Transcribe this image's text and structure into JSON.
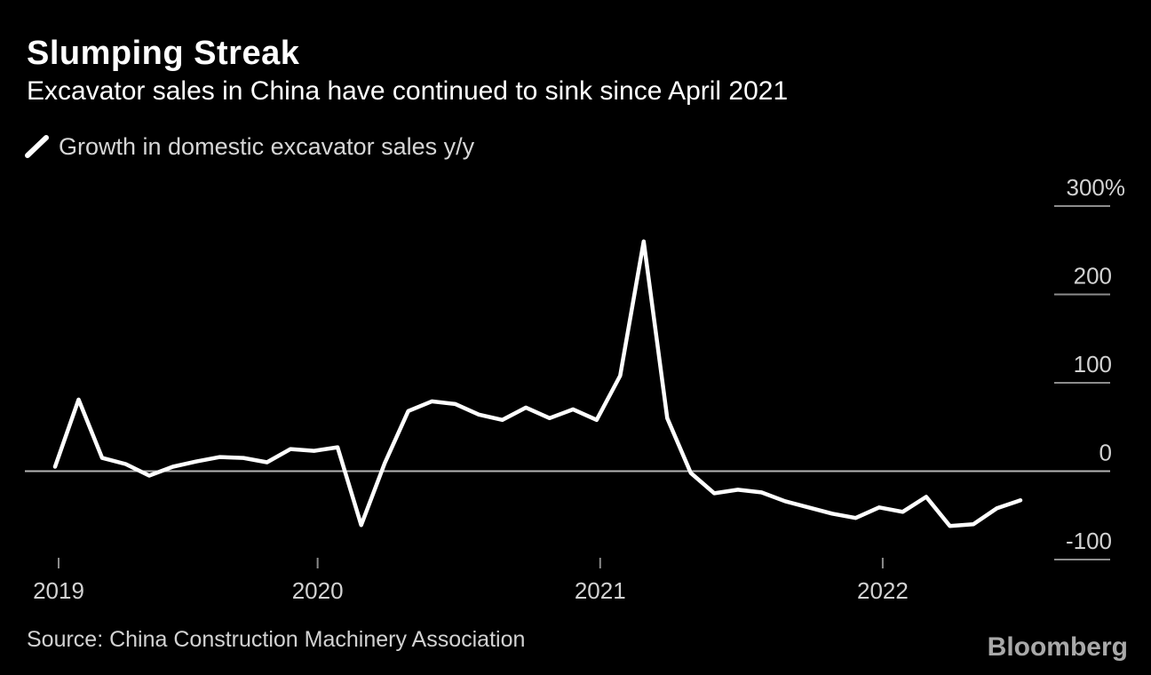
{
  "header": {
    "title": "Slumping Streak",
    "subtitle": "Excavator sales in China have continued to sink since April 2021"
  },
  "legend": {
    "label": "Growth in domestic excavator sales y/y"
  },
  "footer": {
    "source": "Source: China Construction Machinery Association",
    "brand": "Bloomberg"
  },
  "colors": {
    "background": "#000000",
    "series_line": "#ffffff",
    "text_primary": "#ffffff",
    "text_secondary": "#d2d2d2",
    "tick": "#8c8c8c",
    "zero_line": "#b5b5b5",
    "brand": "#a9a9a9"
  },
  "chart_data": {
    "type": "line",
    "title": "Slumping Streak",
    "subtitle": "Excavator sales in China have continued to sink since April 2021",
    "series_name": "Growth in domestic excavator sales y/y",
    "unit": "%",
    "x": [
      "Jan 2019",
      "Feb 2019",
      "Mar 2019",
      "Apr 2019",
      "May 2019",
      "Jun 2019",
      "Jul 2019",
      "Aug 2019",
      "Sep 2019",
      "Oct 2019",
      "Nov 2019",
      "Dec 2019",
      "Jan 2020",
      "Feb 2020",
      "Mar 2020",
      "Apr 2020",
      "May 2020",
      "Jun 2020",
      "Jul 2020",
      "Aug 2020",
      "Sep 2020",
      "Oct 2020",
      "Nov 2020",
      "Dec 2020",
      "Jan 2021",
      "Feb 2021",
      "Mar 2021",
      "Apr 2021",
      "May 2021",
      "Jun 2021",
      "Jul 2021",
      "Aug 2021",
      "Sep 2021",
      "Oct 2021",
      "Nov 2021",
      "Dec 2021",
      "Jan 2022",
      "Feb 2022",
      "Mar 2022",
      "Apr 2022",
      "May 2022",
      "Jun 2022"
    ],
    "values": [
      5,
      81,
      15,
      8,
      -5,
      5,
      11,
      16,
      15,
      10,
      25,
      23,
      27,
      -61,
      9,
      68,
      79,
      76,
      64,
      58,
      72,
      60,
      70,
      58,
      108,
      260,
      60,
      -2,
      -25,
      -21,
      -24,
      -34,
      -41,
      -48,
      -53,
      -41,
      -46,
      -29,
      -62,
      -60,
      -42,
      -33
    ],
    "y_ticks": [
      {
        "value": 300,
        "label": "300%"
      },
      {
        "value": 200,
        "label": "200"
      },
      {
        "value": 100,
        "label": "100"
      },
      {
        "value": 0,
        "label": "0"
      },
      {
        "value": -100,
        "label": "-100"
      }
    ],
    "x_ticks": [
      {
        "label": "2019",
        "month_index": 0
      },
      {
        "label": "2020",
        "month_index": 11
      },
      {
        "label": "2021",
        "month_index": 23
      },
      {
        "label": "2022",
        "month_index": 35
      }
    ],
    "ylim": [
      -100,
      300
    ],
    "grid": "zero-line-only",
    "legend_position": "top-left"
  }
}
